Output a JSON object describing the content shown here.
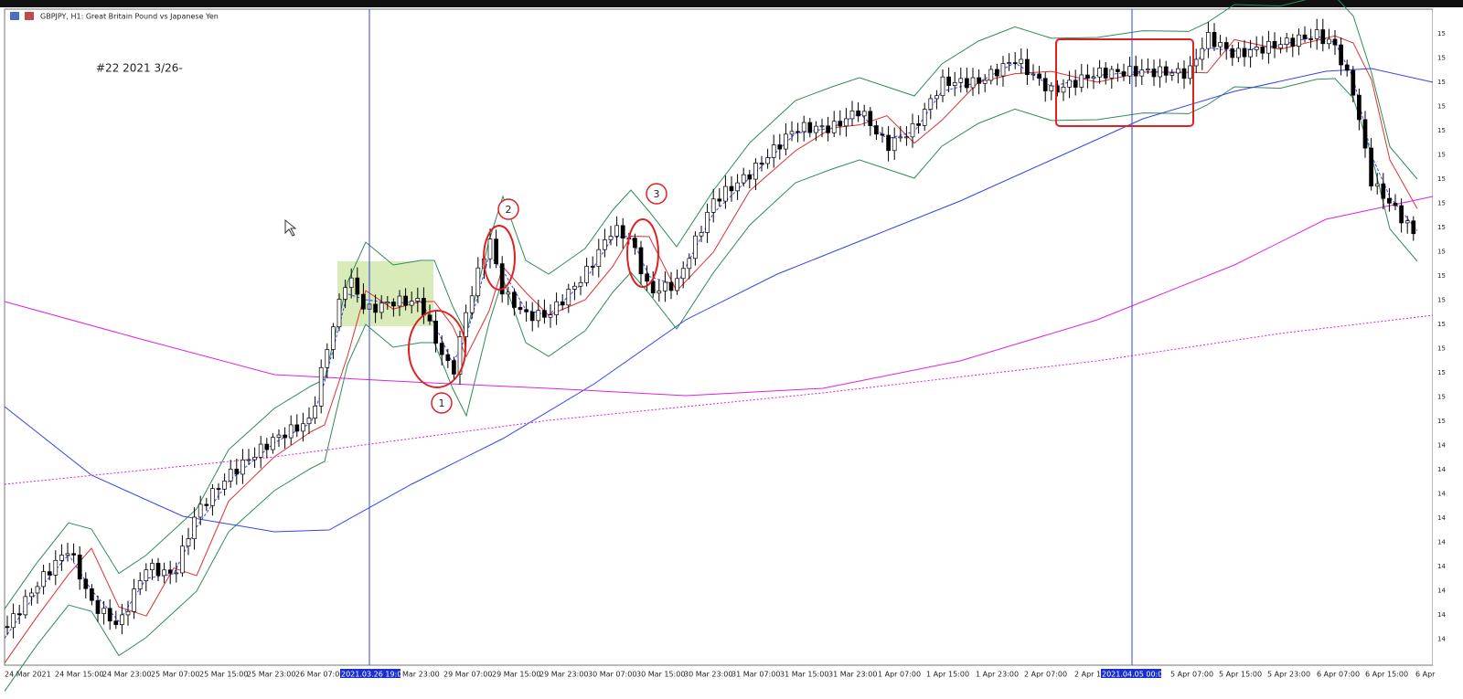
{
  "header": {
    "title": "GBPJPY, H1:  Great Britain Pound vs Japanese Yen"
  },
  "annotation": "#22   2021 3/26-",
  "markers": [
    "1",
    "2",
    "3"
  ],
  "time_axis": [
    "24 Mar 2021",
    "24 Mar 15:00",
    "24 Mar 23:00",
    "25 Mar 07:00",
    "25 Mar 15:00",
    "25 Mar 23:00",
    "26 Mar 07:00",
    "2021.03.26 19:00",
    "Mar 23:00",
    "29 Mar 07:00",
    "29 Mar 15:00",
    "29 Mar 23:00",
    "30 Mar 07:00",
    "30 Mar 15:00",
    "30 Mar 23:00",
    "31 Mar 07:00",
    "31 Mar 15:00",
    "31 Mar 23:00",
    "1 Apr 07:00",
    "1 Apr 15:00",
    "1 Apr 23:00",
    "2 Apr 07:00",
    "2 Apr 1",
    "2021.04.05 00:00",
    "5 Apr 07:00",
    "5 Apr 15:00",
    "5 Apr 23:00",
    "6 Apr 07:00",
    "6 Apr 15:00",
    "6 Apr"
  ],
  "price_axis": [
    "15",
    "15",
    "15",
    "15",
    "15",
    "15",
    "15",
    "15",
    "15",
    "15",
    "15",
    "15",
    "15",
    "15",
    "15",
    "15",
    "15",
    "14",
    "14",
    "14",
    "14",
    "14",
    "14",
    "14",
    "14",
    "14"
  ]
}
